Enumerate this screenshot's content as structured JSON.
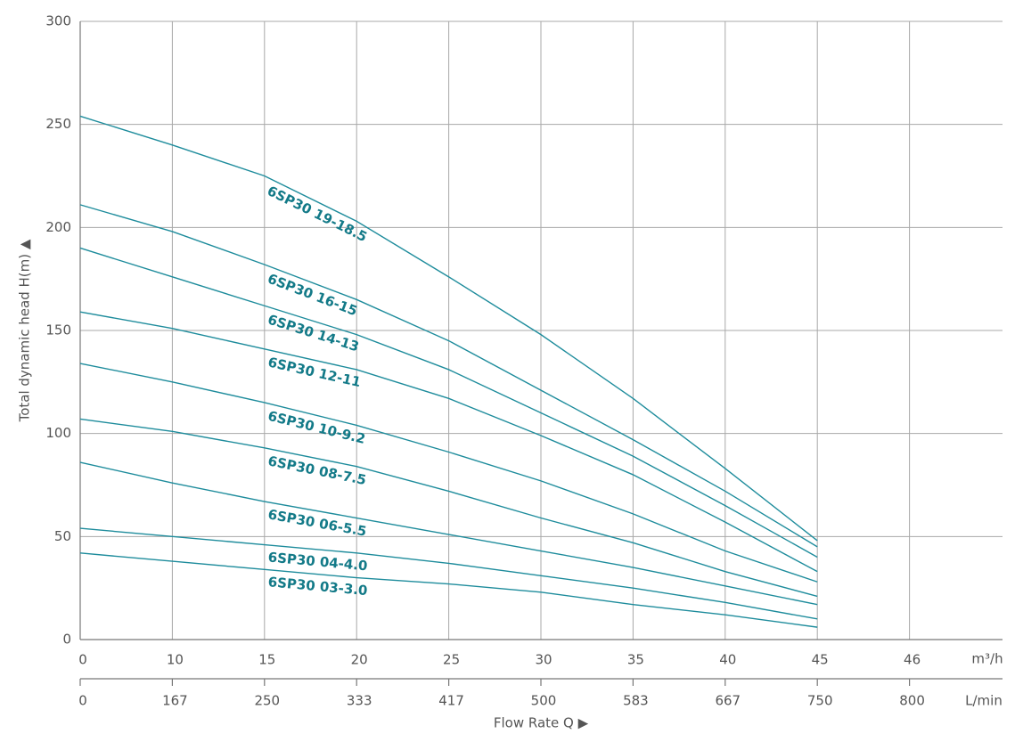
{
  "chart_data": {
    "type": "line",
    "y_label": "Total dynamic head H(m) ▲",
    "x_label": "Flow Rate Q ▶",
    "x_unit": "m³/h",
    "x2_unit": "L/min",
    "categories": [
      "0",
      "10",
      "15",
      "20",
      "25",
      "30",
      "35",
      "40",
      "45",
      "46"
    ],
    "categories2": [
      "0",
      "167",
      "250",
      "333",
      "417",
      "500",
      "583",
      "667",
      "750",
      "800"
    ],
    "series": [
      {
        "name": "6SP30 19-18.5",
        "color": "#1e8c9c",
        "values": [
          254,
          240,
          225,
          203,
          176,
          148,
          117,
          83,
          48,
          null
        ]
      },
      {
        "name": "6SP30 16-15",
        "color": "#1e8c9c",
        "values": [
          211,
          198,
          182,
          165,
          145,
          121,
          97,
          72,
          45,
          null
        ]
      },
      {
        "name": "6SP30 14-13",
        "color": "#1e8c9c",
        "values": [
          190,
          176,
          162,
          148,
          131,
          110,
          89,
          65,
          40,
          null
        ]
      },
      {
        "name": "6SP30 12-11",
        "color": "#1e8c9c",
        "values": [
          159,
          151,
          141,
          131,
          117,
          99,
          80,
          57,
          33,
          null
        ]
      },
      {
        "name": "6SP30 10-9.2",
        "color": "#1e8c9c",
        "values": [
          134,
          125,
          115,
          104,
          91,
          77,
          61,
          43,
          28,
          null
        ]
      },
      {
        "name": "6SP30 08-7.5",
        "color": "#1e8c9c",
        "values": [
          107,
          101,
          93,
          84,
          72,
          59,
          47,
          33,
          21,
          null
        ]
      },
      {
        "name": "6SP30 06-5.5",
        "color": "#1e8c9c",
        "values": [
          86,
          76,
          67,
          59,
          51,
          43,
          35,
          26,
          17,
          null
        ]
      },
      {
        "name": "6SP30 04-4.0",
        "color": "#1e8c9c",
        "values": [
          54,
          50,
          46,
          42,
          37,
          31,
          25,
          18,
          10,
          null
        ]
      },
      {
        "name": "6SP30 03-3.0",
        "color": "#1e8c9c",
        "values": [
          42,
          38,
          34,
          30,
          27,
          23,
          17,
          12,
          6,
          null
        ]
      }
    ],
    "label_color": "#137a88",
    "ylim": [
      0,
      300
    ],
    "yticks": [
      0,
      50,
      100,
      150,
      200,
      250,
      300
    ],
    "grid": true
  }
}
